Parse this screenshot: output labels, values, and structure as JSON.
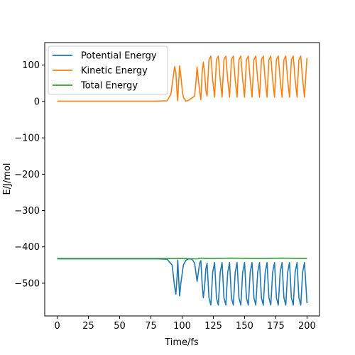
{
  "chart_data": {
    "type": "line",
    "title": "",
    "xlabel": "Time/fs",
    "ylabel": "E/J/mol",
    "xlim": [
      -10,
      210
    ],
    "ylim": [
      -590,
      162
    ],
    "xticks": [
      0,
      25,
      50,
      75,
      100,
      125,
      150,
      175,
      200
    ],
    "yticks": [
      100,
      0,
      -100,
      -200,
      -300,
      -400,
      -500
    ],
    "ytick_labels": [
      "100",
      "0",
      "−100",
      "−200",
      "−300",
      "−400",
      "−500"
    ],
    "grid": false,
    "legend_position": "top-left",
    "series": [
      {
        "name": "Potential Energy",
        "color": "#1f77b4",
        "points": [
          [
            0,
            -433
          ],
          [
            80,
            -433
          ],
          [
            88,
            -434
          ],
          [
            92,
            -450
          ],
          [
            94,
            -510
          ],
          [
            95,
            -530
          ],
          [
            96,
            -480
          ],
          [
            96.5,
            -436
          ],
          [
            97,
            -470
          ],
          [
            98,
            -535
          ],
          [
            99,
            -500
          ],
          [
            101,
            -450
          ],
          [
            103,
            -437
          ],
          [
            105,
            -433
          ],
          [
            108,
            -434
          ],
          [
            110,
            -445
          ],
          [
            111,
            -470
          ],
          [
            112,
            -495
          ],
          [
            113,
            -470
          ],
          [
            114,
            -445
          ],
          [
            115,
            -438
          ],
          [
            116,
            -500
          ],
          [
            117,
            -540
          ],
          [
            118,
            -510
          ],
          [
            119,
            -460
          ],
          [
            120,
            -445
          ],
          [
            121.5,
            -540
          ],
          [
            123,
            -560
          ],
          [
            124.5,
            -470
          ],
          [
            126,
            -443
          ],
          [
            127.5,
            -540
          ],
          [
            129,
            -560
          ],
          [
            130.5,
            -470
          ],
          [
            132,
            -443
          ],
          [
            133.5,
            -540
          ],
          [
            135,
            -560
          ],
          [
            136.5,
            -470
          ],
          [
            138,
            -443
          ],
          [
            139.5,
            -540
          ],
          [
            141,
            -560
          ],
          [
            142.5,
            -470
          ],
          [
            144,
            -443
          ],
          [
            145.5,
            -540
          ],
          [
            147,
            -560
          ],
          [
            148.5,
            -470
          ],
          [
            150,
            -443
          ],
          [
            151.5,
            -540
          ],
          [
            153,
            -560
          ],
          [
            154.5,
            -470
          ],
          [
            156,
            -443
          ],
          [
            157.5,
            -540
          ],
          [
            159,
            -560
          ],
          [
            160.5,
            -470
          ],
          [
            162,
            -443
          ],
          [
            163.5,
            -540
          ],
          [
            165,
            -560
          ],
          [
            166.5,
            -470
          ],
          [
            168,
            -443
          ],
          [
            169.5,
            -540
          ],
          [
            171,
            -560
          ],
          [
            172.5,
            -470
          ],
          [
            174,
            -443
          ],
          [
            175.5,
            -540
          ],
          [
            177,
            -560
          ],
          [
            178.5,
            -470
          ],
          [
            180,
            -443
          ],
          [
            181.5,
            -540
          ],
          [
            183,
            -560
          ],
          [
            184.5,
            -470
          ],
          [
            186,
            -443
          ],
          [
            187.5,
            -540
          ],
          [
            189,
            -560
          ],
          [
            190.5,
            -470
          ],
          [
            192,
            -443
          ],
          [
            193.5,
            -540
          ],
          [
            195,
            -560
          ],
          [
            196.5,
            -470
          ],
          [
            198,
            -443
          ],
          [
            199,
            -500
          ],
          [
            200,
            -555
          ]
        ]
      },
      {
        "name": "Kinetic Energy",
        "color": "#ff7f0e",
        "points": [
          [
            0,
            1
          ],
          [
            80,
            1
          ],
          [
            88,
            2
          ],
          [
            91,
            20
          ],
          [
            93,
            70
          ],
          [
            94,
            96
          ],
          [
            95,
            80
          ],
          [
            96,
            20
          ],
          [
            96.5,
            2
          ],
          [
            97,
            40
          ],
          [
            98,
            98
          ],
          [
            99,
            70
          ],
          [
            100,
            35
          ],
          [
            101,
            12
          ],
          [
            103,
            1
          ],
          [
            105,
            3
          ],
          [
            108,
            10
          ],
          [
            110,
            15
          ],
          [
            111,
            50
          ],
          [
            112,
            95
          ],
          [
            113,
            60
          ],
          [
            114,
            30
          ],
          [
            115,
            5
          ],
          [
            116,
            80
          ],
          [
            117,
            108
          ],
          [
            118,
            80
          ],
          [
            119,
            30
          ],
          [
            120,
            15
          ],
          [
            121.5,
            115
          ],
          [
            123,
            125
          ],
          [
            124.5,
            60
          ],
          [
            126,
            12
          ],
          [
            127.5,
            115
          ],
          [
            129,
            125
          ],
          [
            130.5,
            60
          ],
          [
            132,
            12
          ],
          [
            133.5,
            115
          ],
          [
            135,
            125
          ],
          [
            136.5,
            60
          ],
          [
            138,
            12
          ],
          [
            139.5,
            115
          ],
          [
            141,
            125
          ],
          [
            142.5,
            60
          ],
          [
            144,
            12
          ],
          [
            145.5,
            115
          ],
          [
            147,
            125
          ],
          [
            148.5,
            60
          ],
          [
            150,
            12
          ],
          [
            151.5,
            115
          ],
          [
            153,
            125
          ],
          [
            154.5,
            60
          ],
          [
            156,
            12
          ],
          [
            157.5,
            115
          ],
          [
            159,
            125
          ],
          [
            160.5,
            60
          ],
          [
            162,
            12
          ],
          [
            163.5,
            115
          ],
          [
            165,
            125
          ],
          [
            166.5,
            60
          ],
          [
            168,
            12
          ],
          [
            169.5,
            115
          ],
          [
            171,
            125
          ],
          [
            172.5,
            60
          ],
          [
            174,
            12
          ],
          [
            175.5,
            115
          ],
          [
            177,
            125
          ],
          [
            178.5,
            60
          ],
          [
            180,
            12
          ],
          [
            181.5,
            115
          ],
          [
            183,
            125
          ],
          [
            184.5,
            60
          ],
          [
            186,
            12
          ],
          [
            187.5,
            115
          ],
          [
            189,
            125
          ],
          [
            190.5,
            60
          ],
          [
            192,
            12
          ],
          [
            193.5,
            115
          ],
          [
            195,
            125
          ],
          [
            196.5,
            60
          ],
          [
            198,
            12
          ],
          [
            199,
            70
          ],
          [
            200,
            120
          ]
        ]
      },
      {
        "name": "Total Energy",
        "color": "#2ca02c",
        "points": [
          [
            0,
            -432
          ],
          [
            50,
            -432
          ],
          [
            100,
            -432
          ],
          [
            112,
            -433
          ],
          [
            115,
            -431
          ],
          [
            120,
            -432
          ],
          [
            140,
            -431
          ],
          [
            160,
            -432
          ],
          [
            180,
            -431
          ],
          [
            200,
            -432
          ]
        ]
      }
    ]
  }
}
